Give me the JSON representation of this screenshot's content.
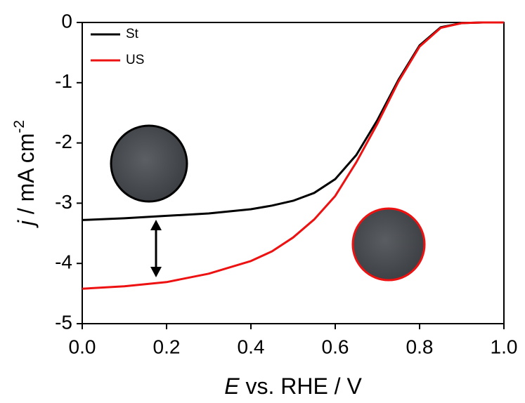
{
  "chart_data": {
    "type": "line",
    "x_label": {
      "symbol": "E",
      "text": " vs. RHE / V"
    },
    "y_label": {
      "symbol": "j",
      "text": " / mA cm",
      "exponent": "-2"
    },
    "x": [
      0,
      0.1,
      0.2,
      0.3,
      0.4,
      0.45,
      0.5,
      0.55,
      0.6,
      0.65,
      0.7,
      0.75,
      0.8,
      0.85,
      0.9,
      0.95,
      1.0
    ],
    "series": [
      {
        "name": "St",
        "color": "#000000",
        "values": [
          -3.28,
          -3.25,
          -3.21,
          -3.17,
          -3.1,
          -3.04,
          -2.96,
          -2.83,
          -2.6,
          -2.2,
          -1.62,
          -0.95,
          -0.38,
          -0.08,
          -0.01,
          0,
          0
        ]
      },
      {
        "name": "US",
        "color": "#ee1111",
        "values": [
          -4.42,
          -4.38,
          -4.31,
          -4.17,
          -3.96,
          -3.8,
          -3.57,
          -3.27,
          -2.88,
          -2.32,
          -1.68,
          -0.98,
          -0.4,
          -0.09,
          -0.01,
          0,
          0
        ]
      }
    ],
    "xlim": [
      0,
      1.0
    ],
    "xticks": [
      {
        "value": 0,
        "label": "0.0"
      },
      0.2,
      0.4,
      0.6,
      0.8,
      {
        "value": 1.0,
        "label": "1.0"
      }
    ],
    "ylim": [
      -5,
      0
    ],
    "yticks": [
      0,
      -1,
      -2,
      -3,
      -4,
      -5
    ],
    "legend": "upper-left"
  }
}
